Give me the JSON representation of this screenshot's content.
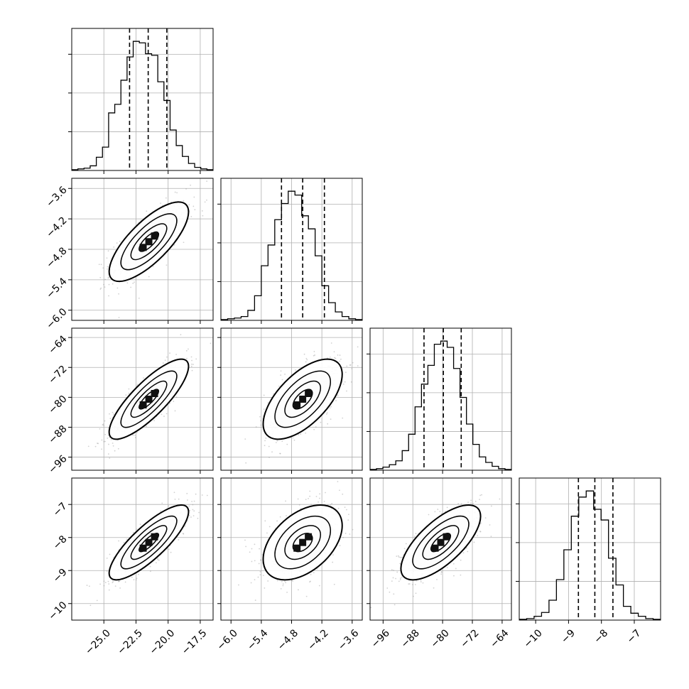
{
  "chart_data": {
    "type": "corner",
    "grid": true,
    "colors": {
      "line": "#000000",
      "grid": "#b0b0b0",
      "scatter": "#9a9a9a",
      "background": "#ffffff"
    },
    "params": [
      {
        "range": [
          -27.5,
          -16.5
        ],
        "ticks": [
          -25.0,
          -22.5,
          -20.0,
          -17.5
        ],
        "tick_labels": [
          "−25.0",
          "−22.5",
          "−20.0",
          "−17.5"
        ],
        "quantiles": [
          -23.0,
          -21.55,
          -20.1
        ]
      },
      {
        "range": [
          -6.2,
          -3.4
        ],
        "ticks": [
          -6.0,
          -5.4,
          -4.8,
          -4.2,
          -3.6
        ],
        "tick_labels": [
          "−6.0",
          "−5.4",
          "−4.8",
          "−4.2",
          "−3.6"
        ],
        "quantiles": [
          -5.0,
          -4.58,
          -4.15
        ]
      },
      {
        "range": [
          -99.5,
          -61.5
        ],
        "ticks": [
          -96,
          -88,
          -80,
          -72,
          -64
        ],
        "tick_labels": [
          "−96",
          "−88",
          "−80",
          "−72",
          "−64"
        ],
        "quantiles": [
          -85.0,
          -79.8,
          -75.0
        ]
      },
      {
        "range": [
          -10.5,
          -6.2
        ],
        "ticks": [
          -10,
          -9,
          -8,
          -7
        ],
        "tick_labels": [
          "−10",
          "−9",
          "−8",
          "−7"
        ],
        "quantiles": [
          -8.7,
          -8.2,
          -7.65
        ]
      }
    ],
    "histograms": [
      {
        "param": 0,
        "counts": [
          1,
          2,
          3,
          6,
          17,
          30,
          74,
          85,
          116,
          146,
          166,
          164,
          150,
          148,
          114,
          90,
          52,
          32,
          18,
          9,
          4,
          2,
          1
        ]
      },
      {
        "param": 1,
        "counts": [
          1,
          2,
          3,
          5,
          13,
          32,
          71,
          98,
          131,
          152,
          168,
          163,
          136,
          119,
          84,
          45,
          23,
          11,
          5,
          2,
          1
        ]
      },
      {
        "param": 2,
        "counts": [
          1,
          2,
          4,
          7,
          12,
          25,
          46,
          81,
          110,
          134,
          161,
          165,
          157,
          130,
          93,
          59,
          33,
          17,
          10,
          5,
          2,
          1
        ]
      },
      {
        "param": 3,
        "counts": [
          1,
          2,
          5,
          10,
          26,
          53,
          92,
          136,
          161,
          169,
          145,
          131,
          81,
          46,
          18,
          9,
          5,
          2,
          1
        ]
      }
    ],
    "joint": [
      {
        "row": 1,
        "col": 0,
        "mean": [
          -21.5,
          -4.65
        ],
        "sd": [
          1.5,
          0.38
        ],
        "rho": 0.75
      },
      {
        "row": 2,
        "col": 0,
        "mean": [
          -21.5,
          -80.5
        ],
        "sd": [
          1.5,
          5.2
        ],
        "rho": 0.82
      },
      {
        "row": 2,
        "col": 1,
        "mean": [
          -4.58,
          -80.5
        ],
        "sd": [
          0.38,
          5.2
        ],
        "rho": 0.62
      },
      {
        "row": 3,
        "col": 0,
        "mean": [
          -21.5,
          -8.15
        ],
        "sd": [
          1.5,
          0.55
        ],
        "rho": 0.82
      },
      {
        "row": 3,
        "col": 1,
        "mean": [
          -4.58,
          -8.15
        ],
        "sd": [
          0.38,
          0.55
        ],
        "rho": 0.45
      },
      {
        "row": 3,
        "col": 2,
        "mean": [
          -80.5,
          -8.15
        ],
        "sd": [
          5.2,
          0.55
        ],
        "rho": 0.7
      }
    ]
  }
}
